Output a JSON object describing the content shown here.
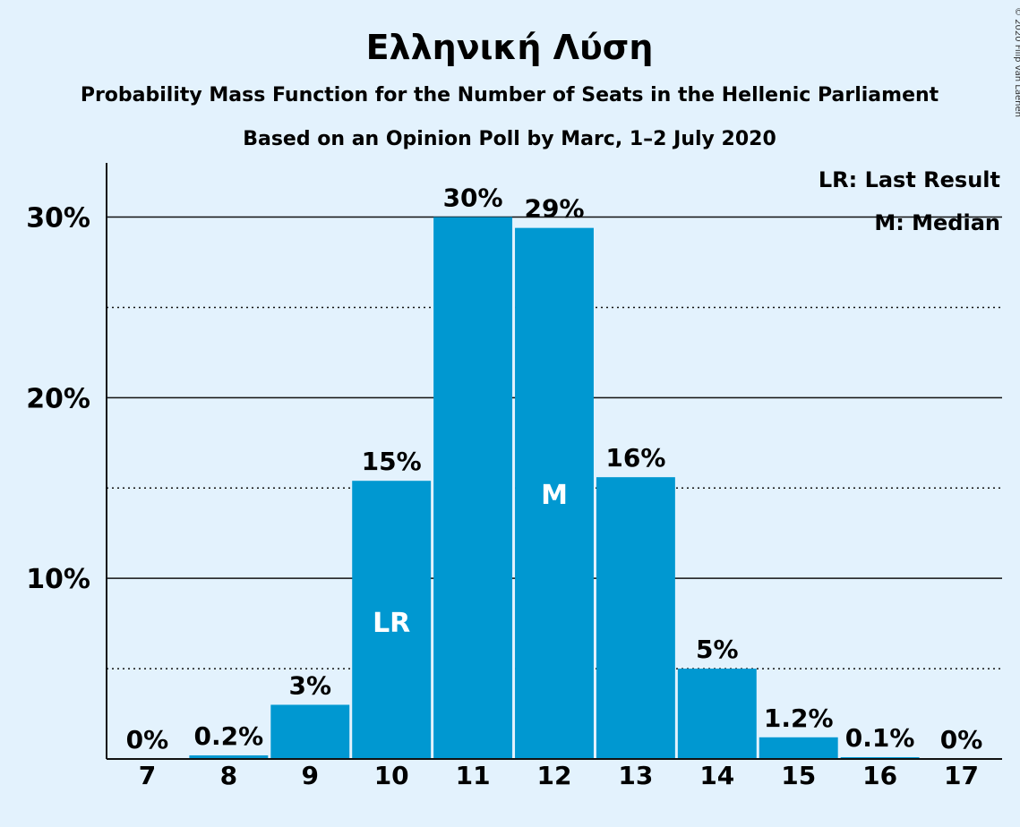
{
  "chart_data": {
    "type": "bar",
    "title": "Ελληνική Λύση",
    "subtitle": "Probability Mass Function for the Number of Seats in the Hellenic Parliament",
    "subtitle2": "Based on an Opinion Poll by Marc, 1–2 July 2020",
    "copyright": "© 2020 Filip van Laenen",
    "legend": [
      "LR: Last Result",
      "M: Median"
    ],
    "legend_position": "top-right",
    "categories": [
      "7",
      "8",
      "9",
      "10",
      "11",
      "12",
      "13",
      "14",
      "15",
      "16",
      "17"
    ],
    "values": [
      0,
      0.2,
      3.0,
      15.4,
      30.0,
      29.4,
      15.6,
      5.0,
      1.2,
      0.1,
      0
    ],
    "data_labels": [
      "0%",
      "0.2%",
      "3%",
      "15%",
      "30%",
      "29%",
      "16%",
      "5%",
      "1.2%",
      "0.1%",
      "0%"
    ],
    "markers": {
      "10": "LR",
      "12": "M"
    },
    "yticks": [
      10,
      20,
      30
    ],
    "ytick_labels": [
      "10%",
      "20%",
      "30%"
    ],
    "minor_gridlines": [
      5,
      15,
      25
    ],
    "ylim": [
      0,
      33
    ],
    "bar_color": "#0098d1"
  }
}
